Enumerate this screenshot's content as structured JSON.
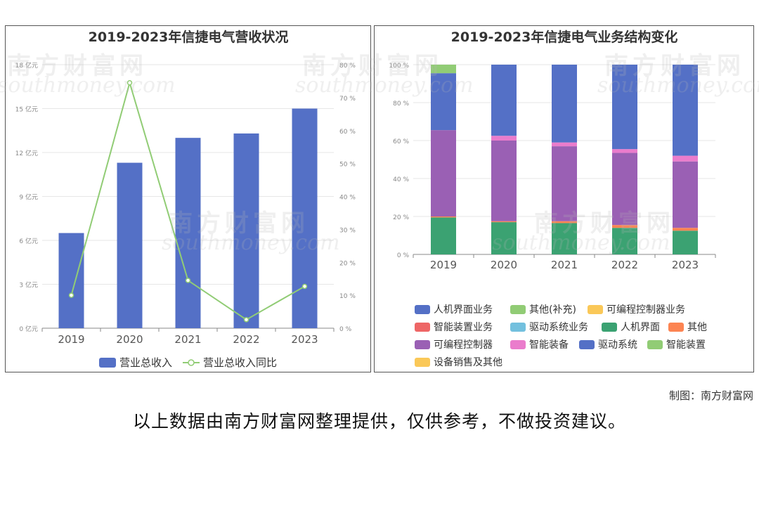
{
  "chart_data": [
    {
      "type": "bar+line",
      "title": "2019-2023年信捷电气营收状况",
      "categories": [
        "2019",
        "2020",
        "2021",
        "2022",
        "2023"
      ],
      "y_left": {
        "ticks": [
          "0 亿元",
          "3 亿元",
          "6 亿元",
          "9 亿元",
          "12 亿元",
          "15 亿元",
          "18 亿元"
        ],
        "range": [
          0,
          18
        ]
      },
      "y_right": {
        "ticks": [
          "0 %",
          "10 %",
          "20 %",
          "30 %",
          "40 %",
          "50 %",
          "60 %",
          "70 %",
          "80 %"
        ],
        "range": [
          0,
          80
        ]
      },
      "series": [
        {
          "name": "营业总收入",
          "type": "bar",
          "axis": "left",
          "color": "#5470c6",
          "values": [
            6.5,
            11.3,
            13.0,
            13.3,
            15.0
          ]
        },
        {
          "name": "营业总收入同比",
          "type": "line",
          "axis": "right",
          "color": "#91cc75",
          "values": [
            10.0,
            74.5,
            14.5,
            2.6,
            12.7
          ]
        }
      ],
      "legend_position": "bottom",
      "grid": true
    },
    {
      "type": "stacked-bar",
      "title": "2019-2023年信捷电气业务结构变化",
      "categories": [
        "2019",
        "2020",
        "2021",
        "2022",
        "2023"
      ],
      "y_ticks": [
        "0 %",
        "20 %",
        "40 %",
        "60 %",
        "80 %",
        "100 %"
      ],
      "ylim": [
        0,
        100
      ],
      "series": [
        {
          "name": "人机界面业务",
          "color": "#5470c6",
          "values": [
            0,
            0,
            0,
            0,
            0
          ]
        },
        {
          "name": "其他(补充)",
          "color": "#91cc75",
          "values": [
            0,
            0,
            0,
            0,
            0
          ]
        },
        {
          "name": "可编程控制器业务",
          "color": "#fac858",
          "values": [
            0,
            0,
            0,
            0,
            0
          ]
        },
        {
          "name": "智能装置业务",
          "color": "#ee6666",
          "values": [
            0,
            0,
            0,
            0,
            0
          ]
        },
        {
          "name": "驱动系统业务",
          "color": "#73c0de",
          "values": [
            0,
            0,
            0,
            0,
            0
          ]
        },
        {
          "name": "人机界面",
          "color": "#3ba272",
          "values": [
            19.5,
            17.0,
            16.5,
            14.0,
            12.5
          ]
        },
        {
          "name": "其他",
          "color": "#fc8452",
          "values": [
            0.5,
            0.5,
            1.0,
            1.5,
            1.5
          ]
        },
        {
          "name": "可编程控制器",
          "color": "#9a60b4",
          "values": [
            45.5,
            42.5,
            39.5,
            38.0,
            35.0
          ]
        },
        {
          "name": "智能装备",
          "color": "#ea7ccc",
          "values": [
            0,
            2.5,
            2.0,
            2.0,
            3.0
          ]
        },
        {
          "name": "驱动系统",
          "color": "#5470c6",
          "values": [
            30.0,
            37.5,
            41.0,
            44.5,
            48.0
          ]
        },
        {
          "name": "智能装置",
          "color": "#91cc75",
          "values": [
            4.5,
            0,
            0,
            0,
            0
          ]
        },
        {
          "name": "设备销售及其他",
          "color": "#fac858",
          "values": [
            0,
            0,
            0,
            0,
            0
          ]
        }
      ],
      "legend_position": "bottom",
      "grid": true
    }
  ],
  "watermark": {
    "cn": "南方财富网",
    "en": "southmoney.com"
  },
  "credit": "制图：南方财富网",
  "footer": "以上数据由南方财富网整理提供，仅供参考，不做投资建议。"
}
